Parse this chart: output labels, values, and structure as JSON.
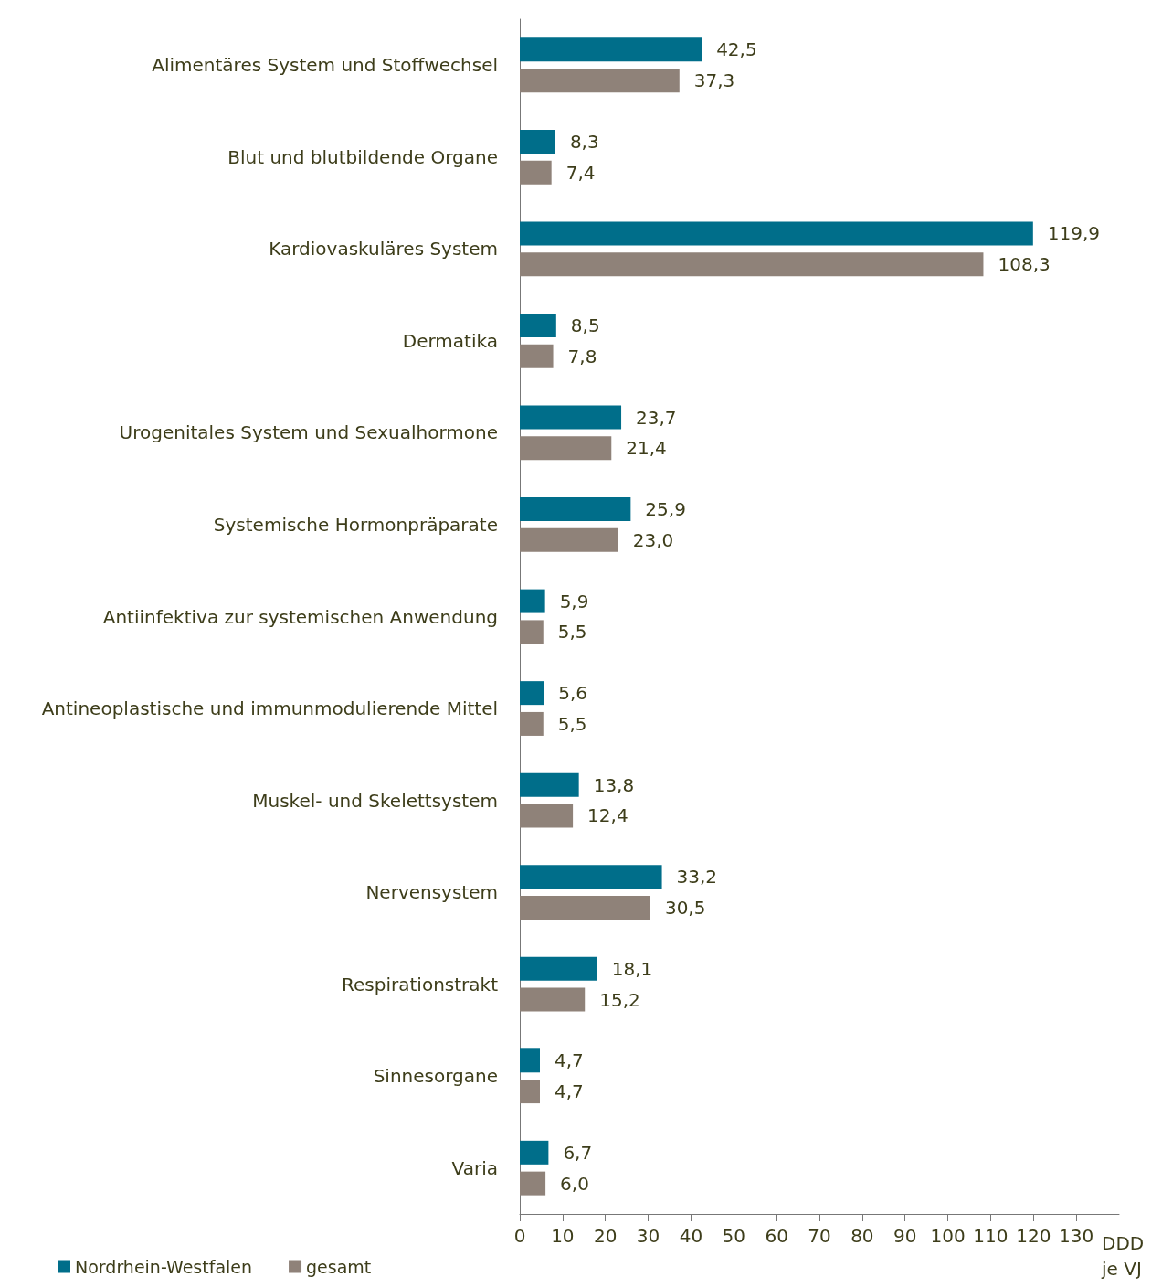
{
  "chart_data": {
    "type": "bar",
    "orientation": "horizontal",
    "xlabel": "DDD je VJ",
    "categories": [
      "Alimentäres System und Stoffwechsel",
      "Blut und blutbildende Organe",
      "Kardiovaskuläres System",
      "Dermatika",
      "Urogenitales System und Sexualhormone",
      "Systemische Hormonpräparate",
      "Antiinfektiva zur systemischen Anwendung",
      "Antineoplastische und immunmodulierende Mittel",
      "Muskel- und Skelettsystem",
      "Nervensystem",
      "Respirationstrakt",
      "Sinnesorgane",
      "Varia"
    ],
    "series": [
      {
        "name": "Nordrhein-Westfalen",
        "color": "#006e8a",
        "values": [
          42.5,
          8.3,
          119.9,
          8.5,
          23.7,
          25.9,
          5.9,
          5.6,
          13.8,
          33.2,
          18.1,
          4.7,
          6.7
        ],
        "value_labels": [
          "42,5",
          "8,3",
          "119,9",
          "8,5",
          "23,7",
          "25,9",
          "5,9",
          "5,6",
          "13,8",
          "33,2",
          "18,1",
          "4,7",
          "6,7"
        ]
      },
      {
        "name": "gesamt",
        "color": "#8f8279",
        "values": [
          37.3,
          7.4,
          108.3,
          7.8,
          21.4,
          23.0,
          5.5,
          5.5,
          12.4,
          30.5,
          15.2,
          4.7,
          6.0
        ],
        "value_labels": [
          "37,3",
          "7,4",
          "108,3",
          "7,8",
          "21,4",
          "23,0",
          "5,5",
          "5,5",
          "12,4",
          "30,5",
          "15,2",
          "4,7",
          "6,0"
        ]
      }
    ],
    "xlim": [
      0,
      140
    ],
    "xticks": [
      0,
      10,
      20,
      30,
      40,
      50,
      60,
      70,
      80,
      90,
      100,
      110,
      120,
      130
    ],
    "grid": false,
    "legend": "bottom left"
  }
}
